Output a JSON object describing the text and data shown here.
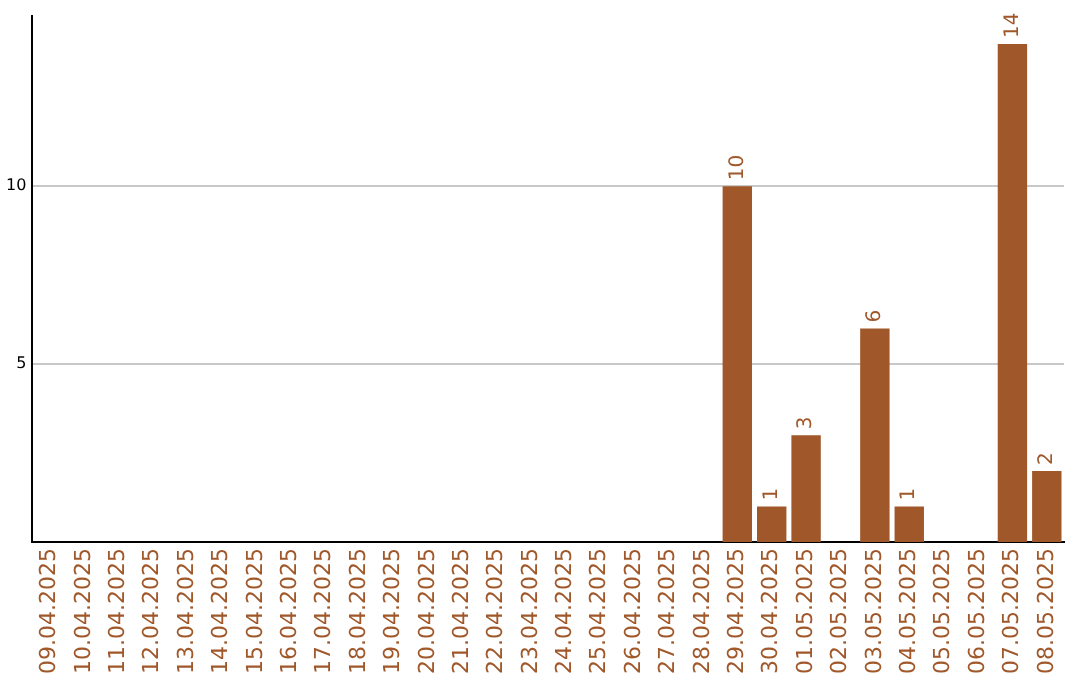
{
  "chart_data": {
    "type": "bar",
    "categories": [
      "09.04.2025",
      "10.04.2025",
      "11.04.2025",
      "12.04.2025",
      "13.04.2025",
      "14.04.2025",
      "15.04.2025",
      "16.04.2025",
      "17.04.2025",
      "18.04.2025",
      "19.04.2025",
      "20.04.2025",
      "21.04.2025",
      "22.04.2025",
      "23.04.2025",
      "24.04.2025",
      "25.04.2025",
      "26.04.2025",
      "27.04.2025",
      "28.04.2025",
      "29.04.2025",
      "30.04.2025",
      "01.05.2025",
      "02.05.2025",
      "03.05.2025",
      "04.05.2025",
      "05.05.2025",
      "06.05.2025",
      "07.05.2025",
      "08.05.2025"
    ],
    "values": [
      0,
      0,
      0,
      0,
      0,
      0,
      0,
      0,
      0,
      0,
      0,
      0,
      0,
      0,
      0,
      0,
      0,
      0,
      0,
      0,
      10,
      1,
      3,
      0,
      6,
      1,
      0,
      0,
      14,
      2
    ],
    "value_labels": [
      null,
      null,
      null,
      null,
      null,
      null,
      null,
      null,
      null,
      null,
      null,
      null,
      null,
      null,
      null,
      null,
      null,
      null,
      null,
      null,
      "10",
      "1",
      "3",
      null,
      "6",
      "1",
      null,
      null,
      "14",
      "2"
    ],
    "color": "#a0582a",
    "ylim": [
      0,
      14.8
    ],
    "yticks": [
      5,
      10
    ],
    "grid": "y",
    "legend": false
  }
}
